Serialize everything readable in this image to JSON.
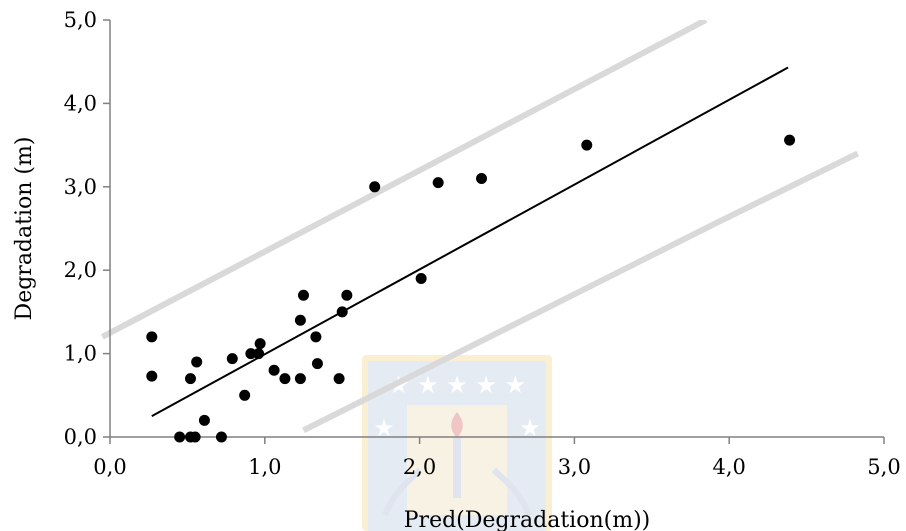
{
  "chart_data": {
    "type": "scatter",
    "xlabel": "Pred(Degradation(m))",
    "ylabel": "Degradation (m)",
    "xlim": [
      0,
      5
    ],
    "ylim": [
      0,
      5
    ],
    "x_ticks": [
      "0,0",
      "1,0",
      "2,0",
      "3,0",
      "4,0",
      "5,0"
    ],
    "y_ticks": [
      "0,0",
      "1,0",
      "2,0",
      "3,0",
      "4,0",
      "5,0"
    ],
    "grid": false,
    "points": [
      {
        "x": 0.27,
        "y": 1.2
      },
      {
        "x": 0.27,
        "y": 0.73
      },
      {
        "x": 0.45,
        "y": 0.0
      },
      {
        "x": 0.52,
        "y": 0.0
      },
      {
        "x": 0.55,
        "y": 0.0
      },
      {
        "x": 0.52,
        "y": 0.7
      },
      {
        "x": 0.56,
        "y": 0.9
      },
      {
        "x": 0.61,
        "y": 0.2
      },
      {
        "x": 0.72,
        "y": 0.0
      },
      {
        "x": 0.79,
        "y": 0.94
      },
      {
        "x": 0.87,
        "y": 0.5
      },
      {
        "x": 0.91,
        "y": 1.0
      },
      {
        "x": 0.96,
        "y": 1.0
      },
      {
        "x": 0.97,
        "y": 1.12
      },
      {
        "x": 1.06,
        "y": 0.8
      },
      {
        "x": 1.13,
        "y": 0.7
      },
      {
        "x": 1.23,
        "y": 0.7
      },
      {
        "x": 1.23,
        "y": 1.4
      },
      {
        "x": 1.25,
        "y": 1.7
      },
      {
        "x": 1.33,
        "y": 1.2
      },
      {
        "x": 1.34,
        "y": 0.88
      },
      {
        "x": 1.48,
        "y": 0.7
      },
      {
        "x": 1.5,
        "y": 1.5
      },
      {
        "x": 1.53,
        "y": 1.7
      },
      {
        "x": 1.71,
        "y": 3.0
      },
      {
        "x": 2.01,
        "y": 1.9
      },
      {
        "x": 2.12,
        "y": 3.05
      },
      {
        "x": 2.4,
        "y": 3.1
      },
      {
        "x": 3.08,
        "y": 3.5
      },
      {
        "x": 4.39,
        "y": 3.56
      }
    ],
    "fit_line": {
      "x": [
        0.27,
        4.38
      ],
      "y": [
        0.25,
        4.43
      ],
      "color": "#000000"
    },
    "upper_band": {
      "x": [
        -0.05,
        3.85
      ],
      "y": [
        1.2,
        5.0
      ],
      "color": "#d9d9d9"
    },
    "lower_band": {
      "x": [
        1.25,
        3.9,
        4.83
      ],
      "y": [
        0.08,
        2.55,
        3.4
      ],
      "color": "#d9d9d9"
    },
    "point_color": "#000000"
  }
}
